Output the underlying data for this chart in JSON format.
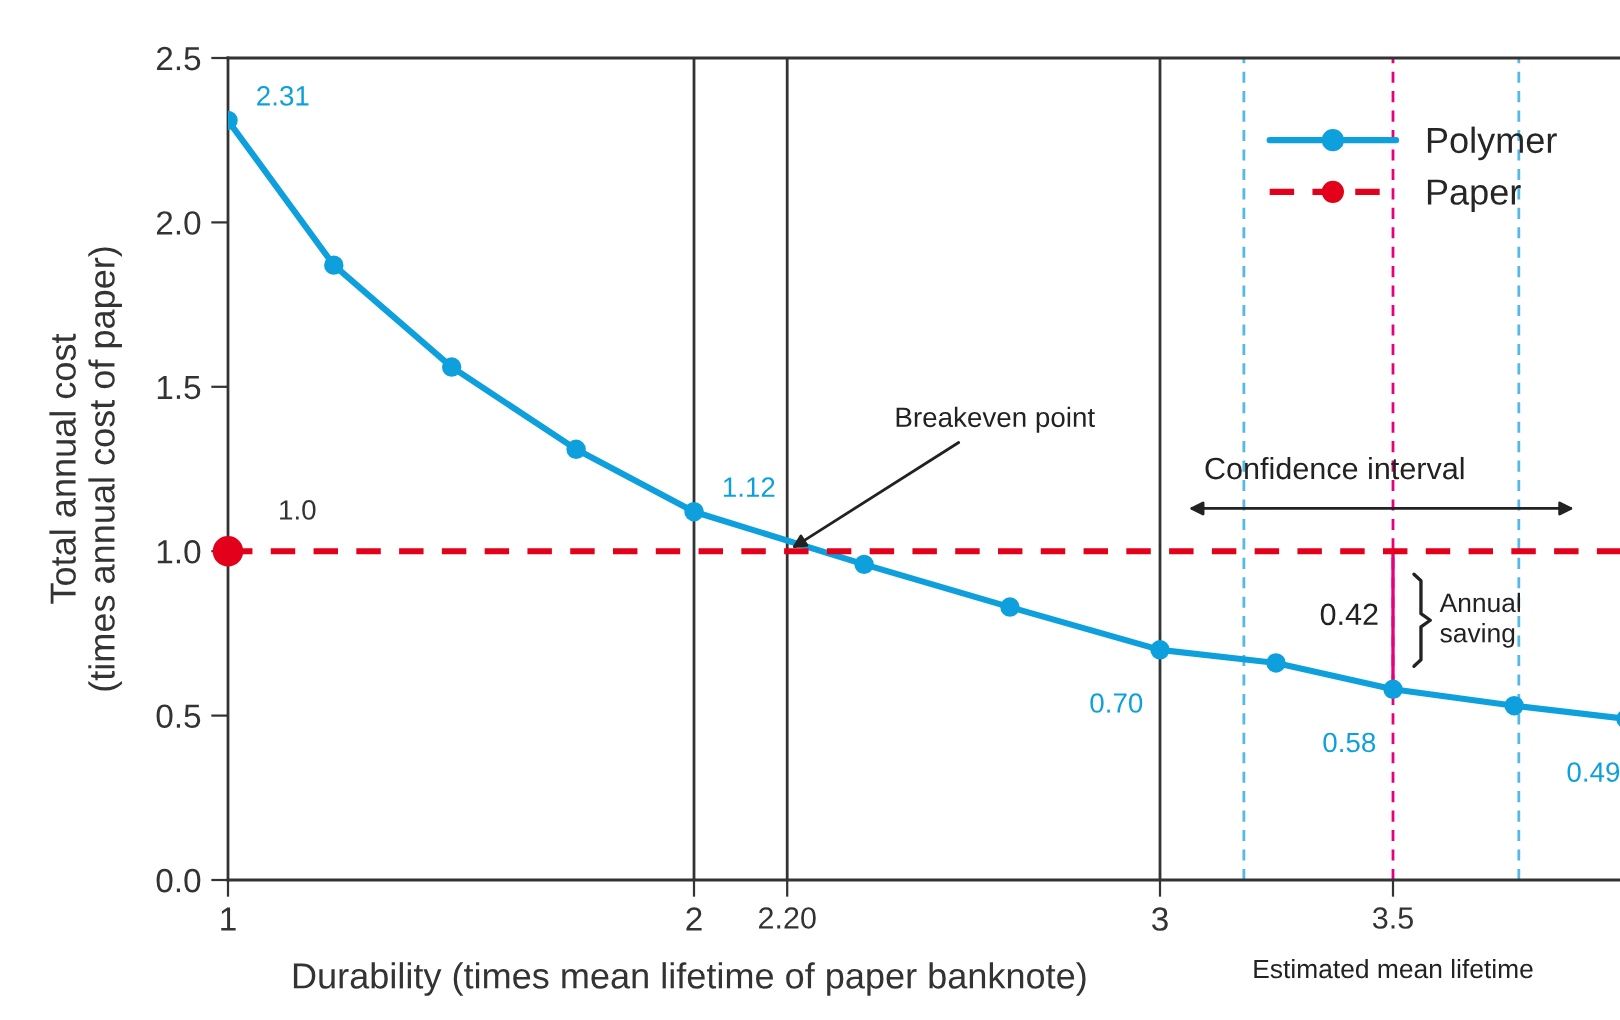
{
  "chart_data": {
    "type": "line",
    "xlabel": "Durability (times mean lifetime of paper banknote)",
    "ylabel": "Total annual cost\n(times annual cost of paper)",
    "xlim": [
      1,
      4
    ],
    "ylim": [
      0,
      2.5
    ],
    "xticks": [
      1,
      2,
      {
        "value": 2.2,
        "label": "2.20"
      },
      3,
      3.5
    ],
    "yticks": [
      {
        "value": 0,
        "label": "0.0"
      },
      {
        "value": 0.5,
        "label": "0.5"
      },
      {
        "value": 1,
        "label": "1.0"
      },
      {
        "value": 1.5,
        "label": "1.5"
      },
      {
        "value": 2,
        "label": "2.0"
      },
      {
        "value": 2.5,
        "label": "2.5"
      }
    ],
    "series": [
      {
        "name": "Polymer",
        "color": "#0ea0dc",
        "marker": "circle",
        "line_style": "solid",
        "x": [
          1,
          1.227,
          1.48,
          1.747,
          2,
          2.365,
          2.678,
          3,
          3.249,
          3.5,
          3.76,
          4
        ],
        "values": [
          2.31,
          1.87,
          1.56,
          1.31,
          1.12,
          0.96,
          0.83,
          0.7,
          0.66,
          0.58,
          0.53,
          0.49
        ],
        "value_labels": [
          "2.31",
          null,
          null,
          null,
          "1.12",
          null,
          null,
          "0.70",
          null,
          "0.58",
          null,
          "0.49"
        ]
      },
      {
        "name": "Paper",
        "color": "#e3001b",
        "marker": "circle",
        "line_style": "dashed",
        "x": [
          1,
          4
        ],
        "values": [
          1.0,
          1.0
        ],
        "value_labels": [
          "1.0",
          null
        ]
      }
    ],
    "ref_lines": [
      {
        "axis": "x",
        "value": 2,
        "color": "#333333",
        "line_style": "solid"
      },
      {
        "axis": "x",
        "value": 2.2,
        "color": "#333333",
        "line_style": "solid"
      },
      {
        "axis": "x",
        "value": 3,
        "color": "#333333",
        "line_style": "solid"
      },
      {
        "axis": "x",
        "value": 3.18,
        "color": "#55b8e6",
        "line_style": "dashed"
      },
      {
        "axis": "x",
        "value": 3.5,
        "color": "#e6007e",
        "line_style": "dashed"
      },
      {
        "axis": "x",
        "value": 3.77,
        "color": "#55b8e6",
        "line_style": "dashed"
      }
    ],
    "annotations": [
      {
        "text": "Breakeven point",
        "x": 2.2,
        "y": 1.0
      },
      {
        "text": "Confidence interval",
        "x": 3.475,
        "y": 1.0
      },
      {
        "text": "0.42",
        "x": 3.5,
        "y": 0.79
      },
      "Annual saving",
      "Estimated mean lifetime"
    ],
    "legend": "top right",
    "grid": false
  }
}
